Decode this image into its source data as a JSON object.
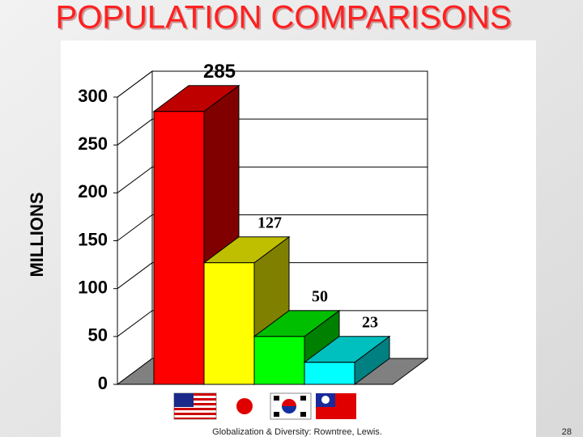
{
  "chart_data": {
    "type": "bar3d",
    "title": "POPULATION COMPARISONS",
    "y_label": "MILLIONS",
    "categories": [
      null,
      null,
      null,
      null
    ],
    "values": [
      285,
      127,
      50,
      23
    ],
    "colors": [
      "#ff0000",
      "#ffff00",
      "#00ff00",
      "#00ffff"
    ],
    "ylim": [
      0,
      300
    ],
    "yticks": [
      0,
      50,
      100,
      150,
      200,
      250,
      300
    ],
    "grid": true,
    "footer": "Globalization & Diversity: Rowntree, Lewis.",
    "page_number": "28"
  }
}
